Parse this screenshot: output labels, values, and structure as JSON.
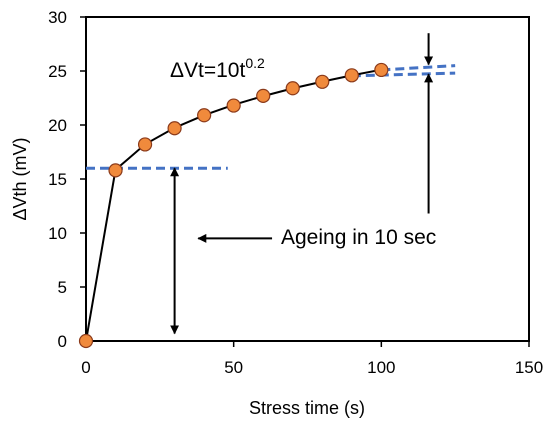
{
  "chart_data": {
    "type": "scatter",
    "xlabel": "Stress time (s)",
    "ylabel": "ΔVth (mV)",
    "xlim": [
      0,
      150
    ],
    "ylim": [
      0,
      30
    ],
    "x_ticks": [
      "0",
      "50",
      "100",
      "150"
    ],
    "y_ticks": [
      "0",
      "5",
      "10",
      "15",
      "20",
      "25",
      "30"
    ],
    "grid": false,
    "legend": "none",
    "series": [
      {
        "type": "scatter",
        "marker_color": "#F08A3C",
        "x": [
          0,
          10,
          20,
          30,
          40,
          50,
          60,
          70,
          80,
          90,
          100
        ],
        "y": [
          0,
          15.8,
          18.2,
          19.7,
          20.9,
          21.8,
          22.7,
          23.4,
          24.0,
          24.6,
          25.1
        ]
      },
      {
        "type": "line",
        "line_color": "#000000",
        "x": [
          0,
          10,
          20,
          30,
          40,
          50,
          60,
          70,
          80,
          90,
          100
        ],
        "y": [
          0,
          15.85,
          18.21,
          19.74,
          20.91,
          21.87,
          22.68,
          23.39,
          24.02,
          24.59,
          25.12
        ]
      }
    ],
    "reference_lines": [
      {
        "color": "#4472C4",
        "style": "dashed",
        "x": [
          0,
          48
        ],
        "y": [
          16.0,
          16.0
        ]
      },
      {
        "color": "#4472C4",
        "style": "dashed",
        "x": [
          90,
          125
        ],
        "y": [
          24.55,
          24.8
        ]
      },
      {
        "color": "#4472C4",
        "style": "dashed",
        "x": [
          100,
          125
        ],
        "y": [
          25.1,
          25.5
        ]
      }
    ],
    "annotations": {
      "equation_base": "ΔVt=10t",
      "equation_exponent": "0.2",
      "ageing_label": "Ageing in 10 sec",
      "double_arrow": {
        "x": 30,
        "y_from": 16,
        "y_to": 0.7
      },
      "pointer_arrow": {
        "x_from": 63,
        "x_to": 38,
        "y": 9.5
      },
      "gap_arrow_top": {
        "x": 116,
        "y_from": 28.5,
        "y_to": 25.6
      },
      "gap_arrow_bottom": {
        "x": 116,
        "y_from": 11.8,
        "y_to": 24.7
      }
    }
  }
}
